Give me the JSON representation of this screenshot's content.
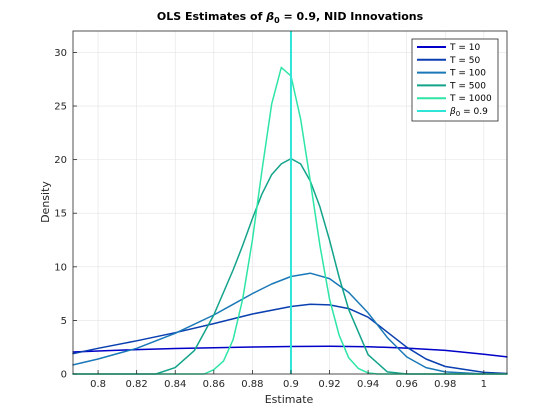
{
  "chart_data": {
    "type": "line",
    "title": {
      "prefix": "OLS Estimates of ",
      "symbol": "β",
      "subscript": "0",
      "suffix": " = 0.9, NID Innovations"
    },
    "xlabel": "Estimate",
    "ylabel": "Density",
    "xlim": [
      0.787,
      1.012
    ],
    "ylim": [
      0,
      32
    ],
    "xticks": [
      0.8,
      0.82,
      0.84,
      0.86,
      0.88,
      0.9,
      0.92,
      0.94,
      0.96,
      0.98,
      1.0
    ],
    "xtick_labels": [
      "0.8",
      "0.82",
      "0.84",
      "0.86",
      "0.88",
      "0.9",
      "0.92",
      "0.94",
      "0.96",
      "0.98",
      "1"
    ],
    "yticks": [
      0,
      5,
      10,
      15,
      20,
      25,
      30
    ],
    "ytick_labels": [
      "0",
      "5",
      "10",
      "15",
      "20",
      "25",
      "30"
    ],
    "grid": true,
    "legend_position": "top-right",
    "series": [
      {
        "name": "T = 10",
        "color": "#0000c8",
        "x": [
          0.787,
          0.8,
          0.82,
          0.84,
          0.86,
          0.88,
          0.9,
          0.92,
          0.94,
          0.96,
          0.98,
          1.0,
          1.012
        ],
        "y": [
          2.05,
          2.15,
          2.28,
          2.38,
          2.45,
          2.52,
          2.57,
          2.58,
          2.55,
          2.42,
          2.2,
          1.85,
          1.6
        ]
      },
      {
        "name": "T = 50",
        "color": "#0a3fb0",
        "x": [
          0.787,
          0.8,
          0.82,
          0.84,
          0.86,
          0.88,
          0.9,
          0.91,
          0.92,
          0.93,
          0.94,
          0.95,
          0.96,
          0.97,
          0.98,
          1.0,
          1.012
        ],
        "y": [
          1.9,
          2.4,
          3.1,
          3.85,
          4.7,
          5.6,
          6.3,
          6.5,
          6.45,
          6.1,
          5.3,
          3.9,
          2.5,
          1.4,
          0.7,
          0.15,
          0.05
        ]
      },
      {
        "name": "T = 100",
        "color": "#1a78b8",
        "x": [
          0.787,
          0.8,
          0.82,
          0.84,
          0.86,
          0.87,
          0.88,
          0.89,
          0.9,
          0.91,
          0.92,
          0.93,
          0.94,
          0.95,
          0.96,
          0.97,
          0.98,
          1.0
        ],
        "y": [
          0.85,
          1.4,
          2.4,
          3.8,
          5.5,
          6.5,
          7.5,
          8.4,
          9.1,
          9.4,
          8.9,
          7.6,
          5.7,
          3.4,
          1.6,
          0.6,
          0.2,
          0.0
        ]
      },
      {
        "name": "T = 500",
        "color": "#12a38a",
        "x": [
          0.787,
          0.83,
          0.84,
          0.85,
          0.86,
          0.87,
          0.875,
          0.88,
          0.885,
          0.89,
          0.895,
          0.9,
          0.905,
          0.91,
          0.915,
          0.92,
          0.925,
          0.93,
          0.94,
          0.95,
          0.96,
          1.012
        ],
        "y": [
          0.0,
          0.0,
          0.6,
          2.2,
          5.5,
          9.7,
          12.0,
          14.5,
          16.8,
          18.6,
          19.6,
          20.1,
          19.6,
          18.0,
          15.6,
          12.5,
          9.0,
          6.0,
          1.8,
          0.2,
          0.0,
          0.0
        ]
      },
      {
        "name": "T = 1000",
        "color": "#2ee5a5",
        "x": [
          0.787,
          0.855,
          0.86,
          0.865,
          0.87,
          0.875,
          0.88,
          0.885,
          0.89,
          0.895,
          0.9,
          0.905,
          0.91,
          0.915,
          0.92,
          0.925,
          0.93,
          0.935,
          0.94,
          0.945,
          1.012
        ],
        "y": [
          0.0,
          0.0,
          0.4,
          1.2,
          3.2,
          7.0,
          12.5,
          19.0,
          25.2,
          28.6,
          27.8,
          23.8,
          18.0,
          12.0,
          7.0,
          3.6,
          1.5,
          0.5,
          0.1,
          0.0,
          0.0
        ]
      }
    ],
    "reference_line": {
      "label": "β₀ = 0.9",
      "label_symbol": "β",
      "label_subscript": "0",
      "label_suffix": " = 0.9",
      "x": 0.9,
      "color": "#2ee5d8"
    }
  }
}
